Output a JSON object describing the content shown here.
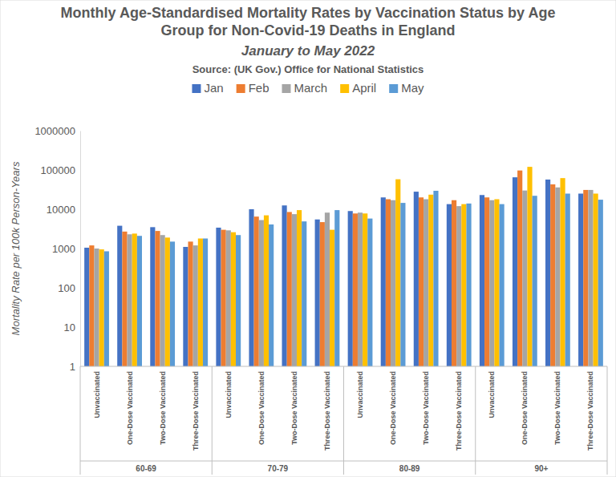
{
  "chart_data": {
    "type": "bar",
    "title": "Monthly Age-Standardised Mortality Rates by Vaccination Status by Age Group for Non-Covid-19 Deaths in England",
    "subtitle": "January to May 2022",
    "source": "Source: (UK Gov.) Office for National Statistics",
    "y_label": "Mortality Rate per 100k Person-Years",
    "groups": [
      "60-69",
      "70-79",
      "80-89",
      "90+"
    ],
    "categories": [
      "Unvaccinated",
      "One-Dose Vaccinated",
      "Two-Dose Vaccinated",
      "Three-Dose Vaccinated",
      "Unvaccinated",
      "One-Dose Vaccinated",
      "Two-Dose Vaccinated",
      "Three-Dose Vaccinated",
      "Unvaccinated",
      "One-Dose Vaccinated",
      "Two-Dose Vaccinated",
      "Three-Dose Vaccinated",
      "Unvaccinated",
      "One-Dose Vaccinated",
      "Two-Dose Vaccinated",
      "Three-Dose Vaccinated"
    ],
    "series": [
      {
        "name": "Jan",
        "color": "#4472c4",
        "values": [
          1050,
          3800,
          3500,
          1100,
          3400,
          10000,
          12500,
          5500,
          9000,
          20000,
          28000,
          13500,
          23000,
          65000,
          57000,
          25000
        ]
      },
      {
        "name": "Feb",
        "color": "#ed7d31",
        "values": [
          1200,
          2700,
          2800,
          1500,
          3000,
          6500,
          8500,
          4700,
          7800,
          18000,
          20000,
          17000,
          20000,
          97000,
          43000,
          31000
        ]
      },
      {
        "name": "March",
        "color": "#a5a5a5",
        "values": [
          1000,
          2300,
          2200,
          1200,
          2900,
          5300,
          7500,
          8200,
          8200,
          17000,
          18000,
          12000,
          17000,
          30000,
          36000,
          31000
        ]
      },
      {
        "name": "April",
        "color": "#ffc000",
        "values": [
          950,
          2400,
          1900,
          1800,
          2600,
          7000,
          9500,
          3000,
          7800,
          58000,
          23500,
          13500,
          18000,
          120000,
          62000,
          25000
        ]
      },
      {
        "name": "May",
        "color": "#5b9bd5",
        "values": [
          850,
          2100,
          1500,
          1800,
          2200,
          4100,
          4900,
          9500,
          5800,
          14500,
          29500,
          14000,
          13500,
          22000,
          25000,
          17500
        ]
      }
    ],
    "ylim": [
      1,
      1000000
    ],
    "yticks": [
      1,
      10,
      100,
      1000,
      10000,
      100000,
      1000000
    ],
    "log": "y",
    "grid": false,
    "legend": "top"
  }
}
